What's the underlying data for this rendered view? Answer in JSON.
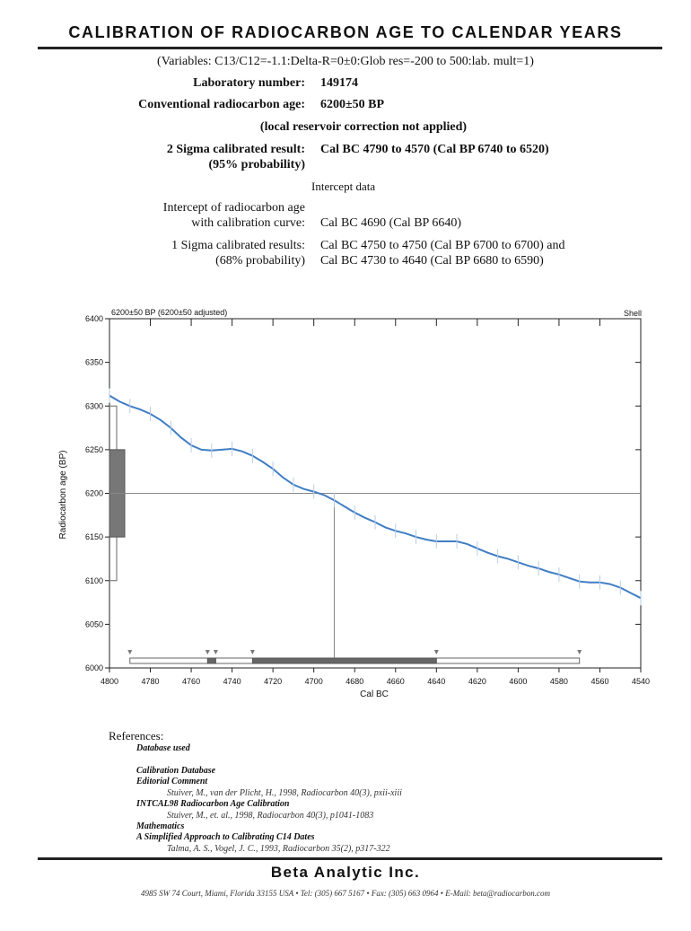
{
  "header": {
    "title": "CALIBRATION OF RADIOCARBON AGE TO CALENDAR YEARS",
    "variables": "(Variables: C13/C12=-1.1:Delta-R=0±0:Glob res=-200 to 500:lab. mult=1)"
  },
  "lab": {
    "number_label": "Laboratory number:",
    "number_value": "149174",
    "age_label": "Conventional radiocarbon age:",
    "age_value": "6200±50 BP",
    "reservoir_note": "(local reservoir correction not applied)"
  },
  "results": {
    "sigma2_label": "2 Sigma calibrated result:",
    "sigma2_prob": "(95% probability)",
    "sigma2_value": "Cal BC 4790 to 4570 (Cal BP 6740 to 6520)",
    "intercept_heading": "Intercept data",
    "intercept_label_1": "Intercept of radiocarbon age",
    "intercept_label_2": "with calibration curve:",
    "intercept_value": "Cal BC 4690 (Cal BP 6640)",
    "sigma1_label": "1 Sigma calibrated results:",
    "sigma1_prob": "(68% probability)",
    "sigma1_value_1": "Cal BC 4750 to 4750 (Cal BP 6700 to 6700) and",
    "sigma1_value_2": "Cal BC 4730 to 4640 (Cal BP 6680 to 6590)"
  },
  "chart_data": {
    "type": "line",
    "top_left_label": "6200±50 BP (6200±50 adjusted)",
    "top_right_label": "Shell",
    "xlabel": "Cal BC",
    "ylabel": "Radiocarbon age (BP)",
    "xlim": [
      4800,
      4540
    ],
    "ylim": [
      6000,
      6400
    ],
    "xticks": [
      4800,
      4780,
      4760,
      4740,
      4720,
      4700,
      4680,
      4660,
      4640,
      4620,
      4600,
      4580,
      4560,
      4540
    ],
    "yticks": [
      6000,
      6050,
      6100,
      6150,
      6200,
      6250,
      6300,
      6350,
      6400
    ],
    "grid": false,
    "series": [
      {
        "color": "#3f7ec4",
        "x": [
          4800,
          4795,
          4790,
          4785,
          4780,
          4775,
          4770,
          4765,
          4760,
          4755,
          4750,
          4745,
          4740,
          4735,
          4730,
          4725,
          4720,
          4715,
          4710,
          4705,
          4700,
          4695,
          4690,
          4685,
          4680,
          4675,
          4670,
          4665,
          4660,
          4655,
          4650,
          4645,
          4640,
          4635,
          4630,
          4625,
          4620,
          4615,
          4610,
          4605,
          4600,
          4595,
          4590,
          4585,
          4580,
          4575,
          4570,
          4565,
          4560,
          4555,
          4550,
          4545,
          4540
        ],
        "y": [
          6312,
          6305,
          6300,
          6296,
          6291,
          6284,
          6275,
          6264,
          6255,
          6250,
          6249,
          6250,
          6251,
          6248,
          6243,
          6236,
          6228,
          6218,
          6210,
          6205,
          6202,
          6198,
          6192,
          6185,
          6178,
          6172,
          6167,
          6161,
          6157,
          6154,
          6150,
          6147,
          6145,
          6145,
          6145,
          6142,
          6137,
          6132,
          6128,
          6125,
          6121,
          6117,
          6114,
          6110,
          6107,
          6103,
          6099,
          6098,
          6098,
          6096,
          6092,
          6086,
          6080
        ]
      }
    ],
    "measured_age": 6200,
    "age_sigma1": [
      6150,
      6250
    ],
    "age_sigma2": [
      6100,
      6300
    ],
    "intercept_x": 4690,
    "calibrated_1sigma": [
      [
        4752,
        4748
      ],
      [
        4730,
        4640
      ]
    ],
    "calibrated_2sigma": [
      [
        4790,
        4570
      ]
    ]
  },
  "references": {
    "heading": "References:",
    "database_used": "Database used",
    "calibration_database": "Calibration Database",
    "editorial_comment": "Editorial Comment",
    "editorial_ref": "Stuiver, M., van der Plicht, H., 1998, Radiocarbon 40(3), pxii-xiii",
    "intcal_title": "INTCAL98 Radiocarbon Age Calibration",
    "intcal_ref": "Stuiver, M., et. al., 1998, Radiocarbon 40(3), p1041-1083",
    "mathematics": "Mathematics",
    "math_title": "A Simplified Approach to Calibrating C14 Dates",
    "math_ref": "Talma, A. S., Vogel, J. C., 1993, Radiocarbon 35(2), p317-322"
  },
  "footer": {
    "company": "Beta Analytic Inc.",
    "address": "4985 SW 74 Court, Miami, Florida 33155 USA • Tel: (305) 667 5167 • Fax: (305) 663 0964 • E-Mail: beta@radiocarbon.com"
  }
}
